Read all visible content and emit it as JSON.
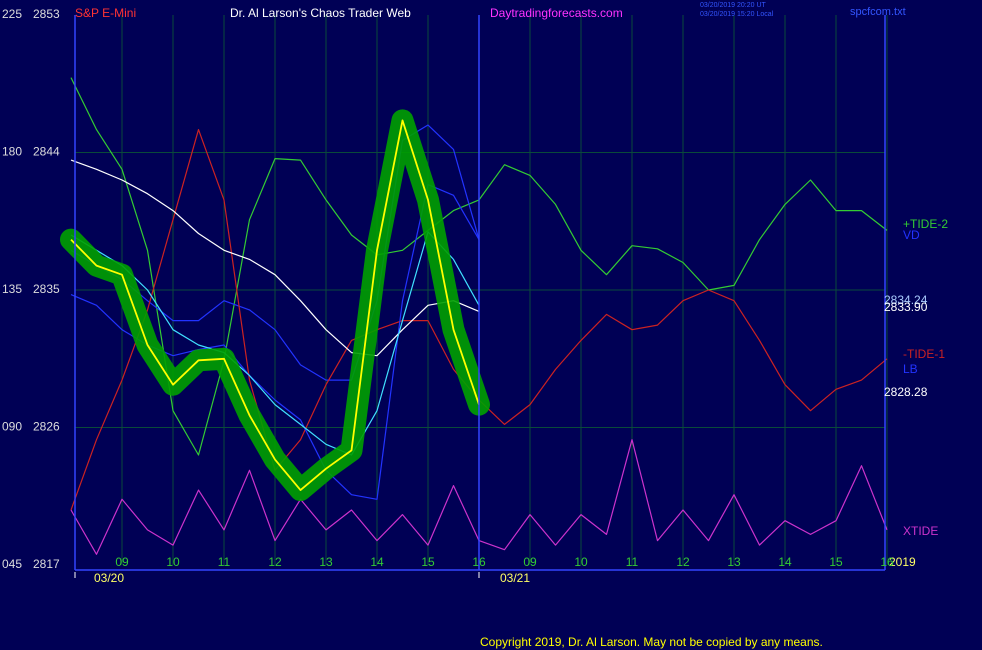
{
  "chart_data": {
    "type": "line",
    "instrument": "S&P E-Mini",
    "title": "Dr. Al Larson's Chaos Trader Web",
    "site": "Daytradingforecasts.com",
    "timestamps": [
      "03/20/2019 20:20 UT",
      "03/20/2019 15:20 Local"
    ],
    "file": "spcfcom.txt",
    "copyright": "Copyright 2019, Dr. Al Larson. May not be copied by any means.",
    "categories": [
      null,
      null,
      "09",
      null,
      "10",
      null,
      "11",
      null,
      "12",
      null,
      "13",
      null,
      "14",
      null,
      "15",
      null,
      "16",
      null,
      "09",
      null,
      "10",
      null,
      "11",
      null,
      "12",
      null,
      "13",
      null,
      "14",
      null,
      "15",
      null,
      "16"
    ],
    "date_labels": [
      "03/20",
      "03/21"
    ],
    "year": "2019",
    "ylim": [
      2817,
      2853
    ],
    "yticks": [
      2817,
      2826,
      2835,
      2844,
      2853
    ],
    "y2lim": [
      45,
      225
    ],
    "y2ticks": [
      {
        "value": 45,
        "label": "045"
      },
      {
        "value": 90,
        "label": "090"
      },
      135,
      180,
      225
    ],
    "grid": true,
    "annotations": [
      "2834.24",
      "2833.90",
      "2828.28"
    ],
    "series": [
      {
        "name": "+TIDE-2",
        "color": "#33cc33",
        "values": [
          2848.9,
          2845.5,
          2842.9,
          2837.6,
          2827.1,
          2824.2,
          2830.4,
          2839.6,
          2843.6,
          2843.5,
          2840.9,
          2838.6,
          2837.3,
          2837.6,
          2838.9,
          2840.2,
          2840.9,
          2843.2,
          2842.5,
          2840.6,
          2837.6,
          2836.0,
          2837.9,
          2837.7,
          2836.8,
          2835.0,
          2835.3,
          2838.3,
          2840.6,
          2842.2,
          2840.2,
          2840.2,
          2838.9
        ]
      },
      {
        "name": "VD",
        "color": "#2233ff",
        "values": [
          2837.6,
          2836.6,
          2835.7,
          2834.3,
          2833.0,
          2833.0,
          2834.3,
          2833.7,
          2832.4,
          2830.1,
          2829.1,
          2829.1,
          2834.3,
          2844.8,
          2845.8,
          2844.2,
          2838.3,
          null,
          null,
          null,
          null,
          null,
          null,
          null,
          null,
          null,
          null,
          null,
          null,
          null,
          null,
          null,
          null
        ]
      },
      {
        "name": "-TIDE-1",
        "color": "#cc2222",
        "values": [
          2820.6,
          2825.2,
          2829.1,
          2833.7,
          2839.6,
          2845.5,
          2840.9,
          2829.1,
          2823.2,
          2825.2,
          2828.8,
          2831.7,
          2832.4,
          2833.0,
          2833.0,
          2829.8,
          2827.8,
          2826.2,
          2827.5,
          2829.8,
          2831.7,
          2833.4,
          2832.4,
          2832.7,
          2834.3,
          2835.0,
          2834.3,
          2831.7,
          2828.8,
          2827.1,
          2828.5,
          2829.1,
          2830.5
        ]
      },
      {
        "name": "LB",
        "color": "#2233ff",
        "values": [
          2834.7,
          2834.0,
          2832.4,
          2831.4,
          2830.7,
          2831.1,
          2831.4,
          2829.4,
          2827.8,
          2826.5,
          2823.2,
          2821.6,
          2821.3,
          2834.3,
          2841.9,
          2841.2,
          2838.3,
          null,
          null,
          null,
          null,
          null,
          null,
          null,
          null,
          null,
          null,
          null,
          null,
          null,
          null,
          null,
          null
        ]
      },
      {
        "name": "XTIDE",
        "color": "#cc33cc",
        "values": [
          2820.6,
          2817.7,
          2821.3,
          2819.3,
          2818.3,
          2821.9,
          2819.3,
          2823.2,
          2818.6,
          2821.3,
          2819.3,
          2820.6,
          2818.6,
          2820.3,
          2818.3,
          2822.2,
          2818.6,
          2818.0,
          2820.3,
          2818.3,
          2820.3,
          2819.0,
          2825.2,
          2818.6,
          2820.6,
          2818.6,
          2821.6,
          2818.3,
          2819.9,
          2819.0,
          2819.9,
          2823.5,
          2819.3
        ]
      },
      {
        "color": "#ffffff",
        "values": [
          2843.5,
          2842.9,
          2842.2,
          2841.3,
          2840.2,
          2838.7,
          2837.6,
          2837.0,
          2836.0,
          2834.3,
          2832.4,
          2830.9,
          2830.7,
          2832.4,
          2834.0,
          2834.3,
          2833.6,
          null,
          null,
          null,
          null,
          null,
          null,
          null,
          null,
          null,
          null,
          null,
          null,
          null,
          null,
          null,
          null
        ]
      },
      {
        "color": "#40e0ff",
        "values": [
          2838.6,
          2837.6,
          2836.6,
          2835.0,
          2832.4,
          2831.4,
          2830.9,
          2829.4,
          2827.5,
          2826.2,
          2824.9,
          2824.2,
          2827.1,
          2833.0,
          2838.8,
          2837.0,
          2834.0,
          null,
          null,
          null,
          null,
          null,
          null,
          null,
          null,
          null,
          null,
          null,
          null,
          null,
          null,
          null,
          null
        ]
      },
      {
        "color": "#ffff00",
        "halo_color": "#00a000",
        "values": [
          2838.3,
          2836.6,
          2836.0,
          2831.4,
          2828.8,
          2830.4,
          2830.5,
          2826.8,
          2823.9,
          2821.9,
          2823.3,
          2824.5,
          2837.6,
          2846.1,
          2840.9,
          2832.4,
          2827.5,
          null,
          null,
          null,
          null,
          null,
          null,
          null,
          null,
          null,
          null,
          null,
          null,
          null,
          null,
          null,
          null
        ]
      }
    ]
  }
}
